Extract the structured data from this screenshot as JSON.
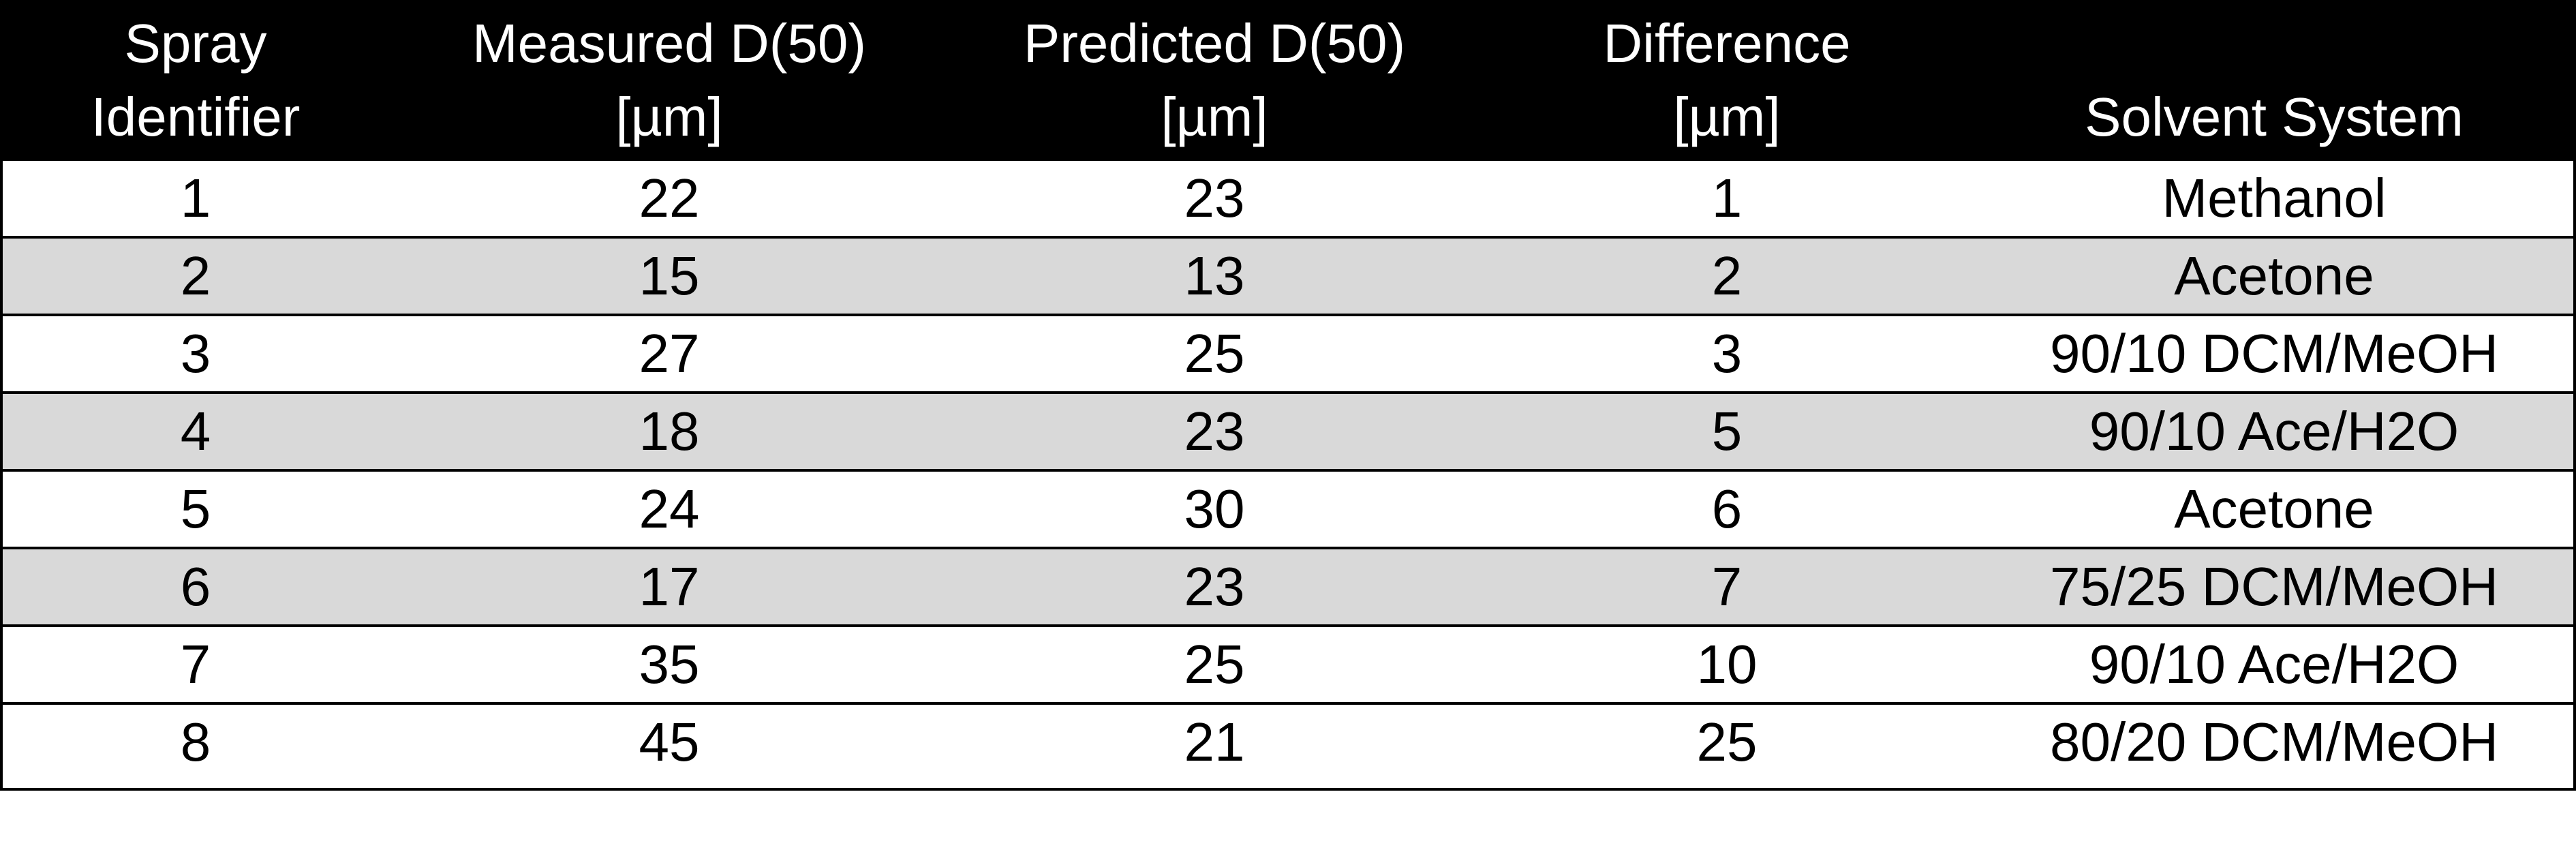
{
  "table": {
    "headers": [
      {
        "line1": "Spray",
        "line2": "Identifier"
      },
      {
        "line1": "Measured D(50)",
        "line2": "[µm]"
      },
      {
        "line1": "Predicted D(50)",
        "line2": "[µm]"
      },
      {
        "line1": "Difference",
        "line2": "[µm]"
      },
      {
        "line1": "",
        "line2": "Solvent System"
      }
    ],
    "rows": [
      [
        "1",
        "22",
        "23",
        "1",
        "Methanol"
      ],
      [
        "2",
        "15",
        "13",
        "2",
        "Acetone"
      ],
      [
        "3",
        "27",
        "25",
        "3",
        "90/10 DCM/MeOH"
      ],
      [
        "4",
        "18",
        "23",
        "5",
        "90/10 Ace/H2O"
      ],
      [
        "5",
        "24",
        "30",
        "6",
        "Acetone"
      ],
      [
        "6",
        "17",
        "23",
        "7",
        "75/25 DCM/MeOH"
      ],
      [
        "7",
        "35",
        "25",
        "10",
        "90/10 Ace/H2O"
      ],
      [
        "8",
        "45",
        "21",
        "25",
        "80/20 DCM/MeOH"
      ]
    ]
  },
  "colors": {
    "header_bg": "#000000",
    "header_text": "#ffffff",
    "alt_row_bg": "#d9d9d9",
    "row_bg": "#ffffff",
    "grid": "#000000"
  }
}
